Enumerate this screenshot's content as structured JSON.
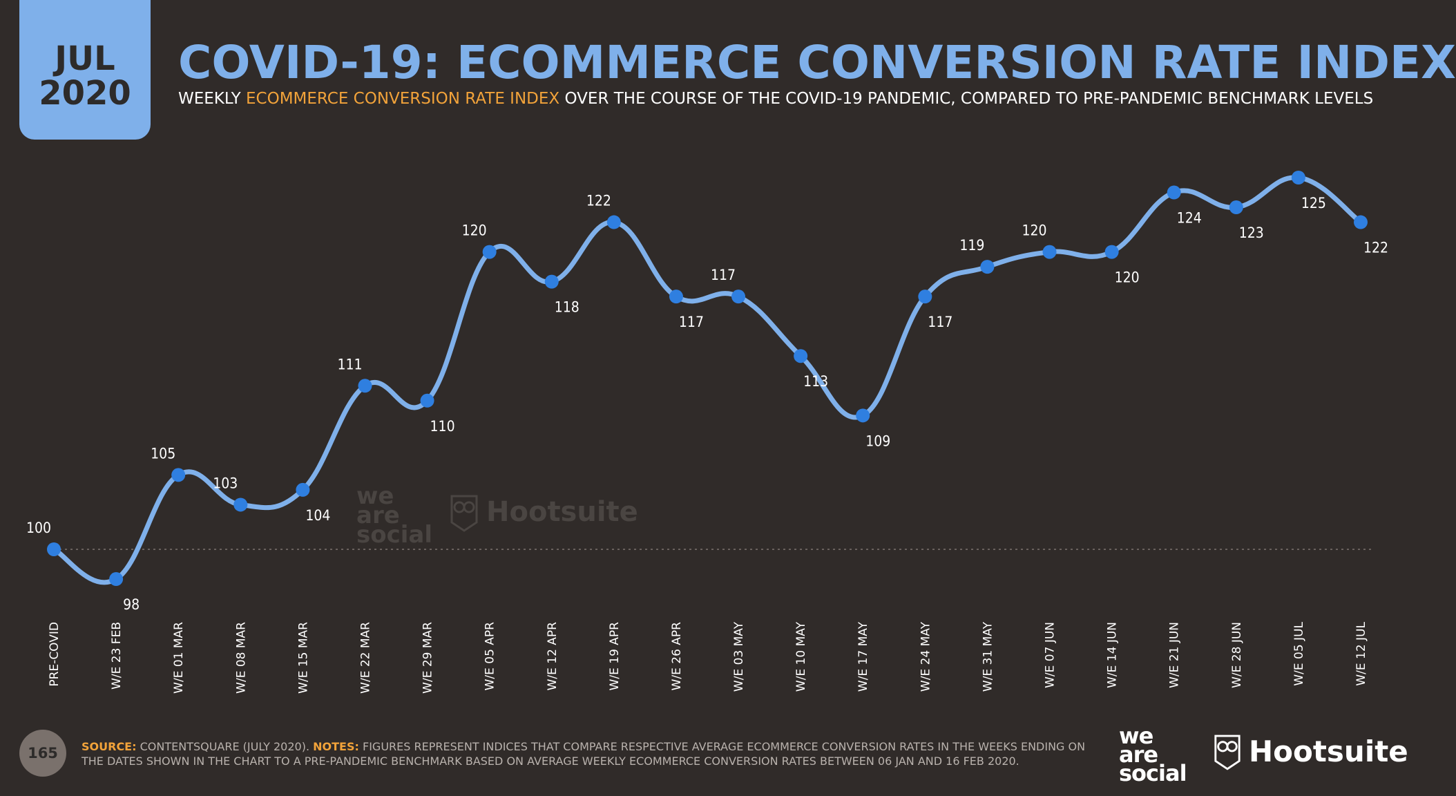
{
  "badge": {
    "month": "JUL",
    "year": "2020"
  },
  "header": {
    "title": "COVID-19: ECOMMERCE CONVERSION RATE INDEX",
    "subtitle_pre": "WEEKLY ",
    "subtitle_highlight": "ECOMMERCE CONVERSION RATE INDEX",
    "subtitle_post": " OVER THE COURSE OF THE COVID-19 PANDEMIC, COMPARED TO PRE-PANDEMIC BENCHMARK LEVELS"
  },
  "colors": {
    "background": "#302b29",
    "accent_blue": "#7fb0ea",
    "point_blue": "#2f7fe0",
    "highlight_orange": "#f2a33a",
    "text_white": "#ffffff"
  },
  "chart_data": {
    "type": "line",
    "categories": [
      "PRE-COVID",
      "W/E 23 FEB",
      "W/E 01 MAR",
      "W/E 08 MAR",
      "W/E 15 MAR",
      "W/E 22 MAR",
      "W/E 29 MAR",
      "W/E 05 APR",
      "W/E 12 APR",
      "W/E 19 APR",
      "W/E 26 APR",
      "W/E 03 MAY",
      "W/E 10 MAY",
      "W/E 17 MAY",
      "W/E 24 MAY",
      "W/E 31 MAY",
      "W/E 07 JUN",
      "W/E 14 JUN",
      "W/E 21 JUN",
      "W/E 28 JUN",
      "W/E 05 JUL",
      "W/E 12 JUL"
    ],
    "values": [
      100,
      98,
      105,
      103,
      104,
      111,
      110,
      120,
      118,
      122,
      117,
      117,
      113,
      109,
      117,
      119,
      120,
      120,
      124,
      123,
      125,
      122
    ],
    "label_positions": [
      "above",
      "below",
      "above",
      "above",
      "below",
      "above",
      "below",
      "above",
      "below",
      "above",
      "below",
      "above",
      "below",
      "below",
      "below",
      "above",
      "above",
      "below",
      "below",
      "below",
      "below",
      "below"
    ],
    "baseline": 100,
    "baseline_style": "dotted",
    "grid": false,
    "legend": "none"
  },
  "watermark": {
    "was_line1": "we",
    "was_line2": "are",
    "was_line3": "social",
    "hootsuite": "Hootsuite"
  },
  "footer": {
    "page_number": "165",
    "source_label": "SOURCE:",
    "source_text": " CONTENTSQUARE (JULY 2020). ",
    "notes_label": "NOTES:",
    "notes_text": " FIGURES REPRESENT INDICES THAT COMPARE RESPECTIVE AVERAGE ECOMMERCE CONVERSION RATES IN THE WEEKS ENDING ON THE DATES SHOWN IN THE CHART TO A PRE-PANDEMIC BENCHMARK BASED ON AVERAGE WEEKLY ECOMMERCE CONVERSION RATES BETWEEN 06 JAN AND 16 FEB 2020."
  },
  "logos": {
    "was_line1": "we",
    "was_line2": "are",
    "was_line3": "social",
    "hootsuite": "Hootsuite"
  }
}
